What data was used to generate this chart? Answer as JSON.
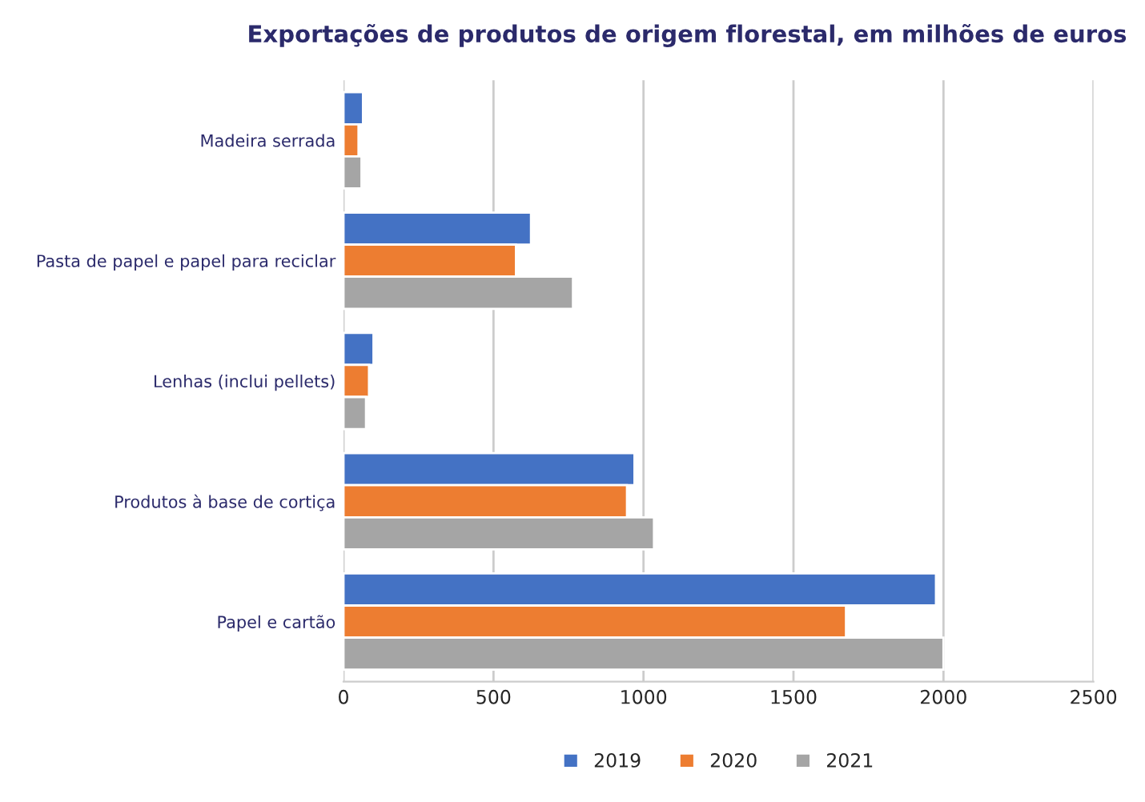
{
  "chart_data": {
    "type": "bar",
    "orientation": "horizontal",
    "title": "Exportações de produtos de origem florestal, em milhões de euros",
    "categories": [
      "Madeira serrada",
      "Pasta de papel e papel para reciclar",
      "Lenhas (inclui pellets)",
      "Produtos à base de cortiça",
      "Papel e cartão"
    ],
    "series": [
      {
        "name": "2019",
        "color": "#4472c4",
        "values": [
          65,
          625,
          100,
          970,
          1975
        ]
      },
      {
        "name": "2020",
        "color": "#ed7d31",
        "values": [
          50,
          575,
          85,
          945,
          1675
        ]
      },
      {
        "name": "2021",
        "color": "#a5a5a5",
        "values": [
          60,
          765,
          75,
          1035,
          2000
        ]
      }
    ],
    "xlim": [
      0,
      2500
    ],
    "xticks": [
      0,
      500,
      1000,
      1500,
      2000,
      2500
    ],
    "grid": "x",
    "legend": "bottom"
  }
}
